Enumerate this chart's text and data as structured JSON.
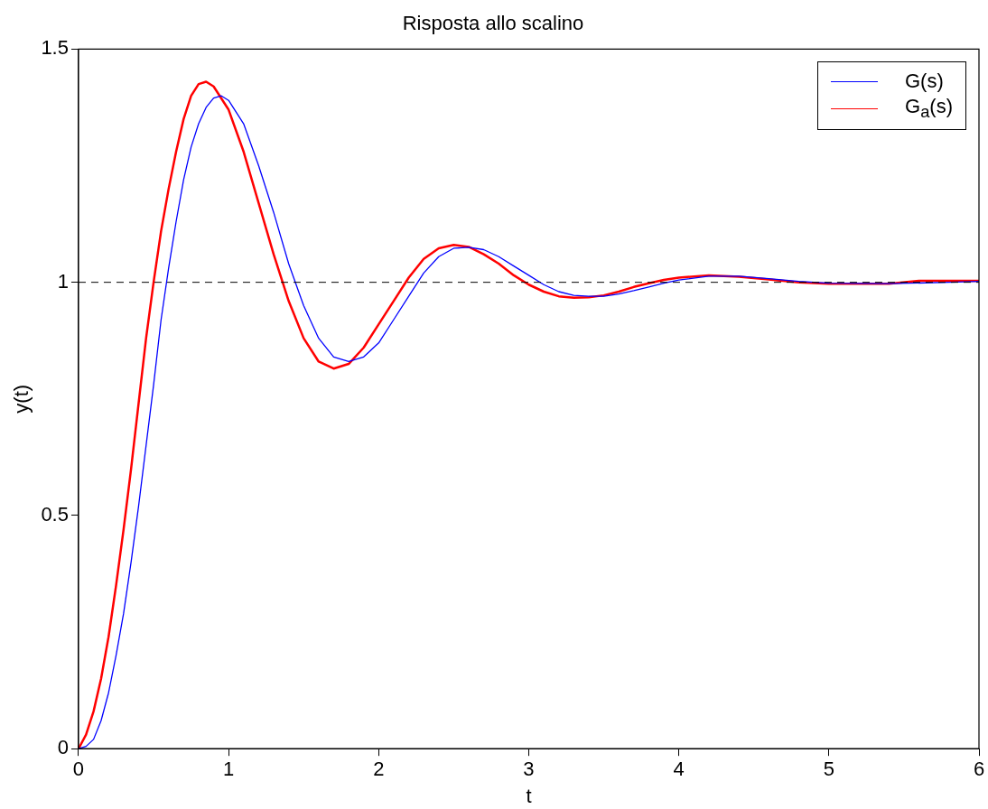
{
  "chart_data": {
    "type": "line",
    "title": "Risposta allo scalino",
    "xlabel": "t",
    "ylabel": "y(t)",
    "xlim": [
      0,
      6
    ],
    "xticks": [
      0,
      1,
      2,
      3,
      4,
      5,
      6
    ],
    "ylim": [
      0,
      1.5
    ],
    "yticks": [
      0,
      0.5,
      1,
      1.5
    ],
    "legend": "top right",
    "marker": "none",
    "line_style": "solid",
    "ref_lines": [
      {
        "axis": "y",
        "value": 1,
        "color": "#000000",
        "line_style": "dashed"
      }
    ],
    "series": [
      {
        "name": "G(s)",
        "color": "#0000ff",
        "x": [
          0,
          0.05,
          0.1,
          0.15,
          0.2,
          0.25,
          0.3,
          0.35,
          0.4,
          0.45,
          0.5,
          0.55,
          0.6,
          0.65,
          0.7,
          0.75,
          0.8,
          0.85,
          0.9,
          0.95,
          1.0,
          1.1,
          1.2,
          1.3,
          1.4,
          1.5,
          1.6,
          1.7,
          1.8,
          1.9,
          2.0,
          2.1,
          2.2,
          2.3,
          2.4,
          2.5,
          2.6,
          2.7,
          2.8,
          2.9,
          3.0,
          3.1,
          3.2,
          3.3,
          3.4,
          3.5,
          3.6,
          3.7,
          3.8,
          3.9,
          4.0,
          4.2,
          4.4,
          4.6,
          4.8,
          5.0,
          5.4,
          5.8,
          6
        ],
        "values": [
          0,
          0.005,
          0.02,
          0.06,
          0.12,
          0.2,
          0.29,
          0.4,
          0.52,
          0.65,
          0.78,
          0.92,
          1.03,
          1.13,
          1.22,
          1.29,
          1.34,
          1.375,
          1.395,
          1.4,
          1.39,
          1.34,
          1.25,
          1.15,
          1.04,
          0.95,
          0.88,
          0.84,
          0.83,
          0.84,
          0.87,
          0.92,
          0.97,
          1.02,
          1.055,
          1.073,
          1.075,
          1.07,
          1.055,
          1.035,
          1.015,
          0.995,
          0.98,
          0.972,
          0.97,
          0.97,
          0.975,
          0.982,
          0.99,
          0.998,
          1.005,
          1.013,
          1.013,
          1.008,
          1.002,
          0.998,
          0.997,
          1.0,
          1.002
        ]
      },
      {
        "name": "G$_{a}$(s)",
        "color": "#ff0000",
        "x": [
          0,
          0.05,
          0.1,
          0.15,
          0.2,
          0.25,
          0.3,
          0.35,
          0.4,
          0.45,
          0.5,
          0.55,
          0.6,
          0.65,
          0.7,
          0.75,
          0.8,
          0.85,
          0.9,
          1.0,
          1.1,
          1.2,
          1.3,
          1.4,
          1.5,
          1.6,
          1.7,
          1.8,
          1.9,
          2.0,
          2.1,
          2.2,
          2.3,
          2.4,
          2.5,
          2.6,
          2.7,
          2.8,
          2.9,
          3.0,
          3.1,
          3.2,
          3.3,
          3.4,
          3.5,
          3.6,
          3.7,
          3.8,
          3.9,
          4.0,
          4.2,
          4.4,
          4.6,
          4.8,
          5.0,
          5.4,
          5.6,
          6
        ],
        "values": [
          0,
          0.03,
          0.08,
          0.15,
          0.24,
          0.35,
          0.47,
          0.6,
          0.74,
          0.88,
          1.0,
          1.11,
          1.2,
          1.28,
          1.35,
          1.4,
          1.425,
          1.43,
          1.42,
          1.37,
          1.28,
          1.17,
          1.06,
          0.96,
          0.88,
          0.83,
          0.815,
          0.825,
          0.86,
          0.91,
          0.96,
          1.01,
          1.05,
          1.073,
          1.08,
          1.076,
          1.06,
          1.04,
          1.015,
          0.995,
          0.98,
          0.97,
          0.967,
          0.968,
          0.972,
          0.98,
          0.99,
          0.998,
          1.005,
          1.01,
          1.015,
          1.012,
          1.006,
          1.0,
          0.997,
          0.997,
          1.003,
          1.003
        ]
      }
    ]
  }
}
